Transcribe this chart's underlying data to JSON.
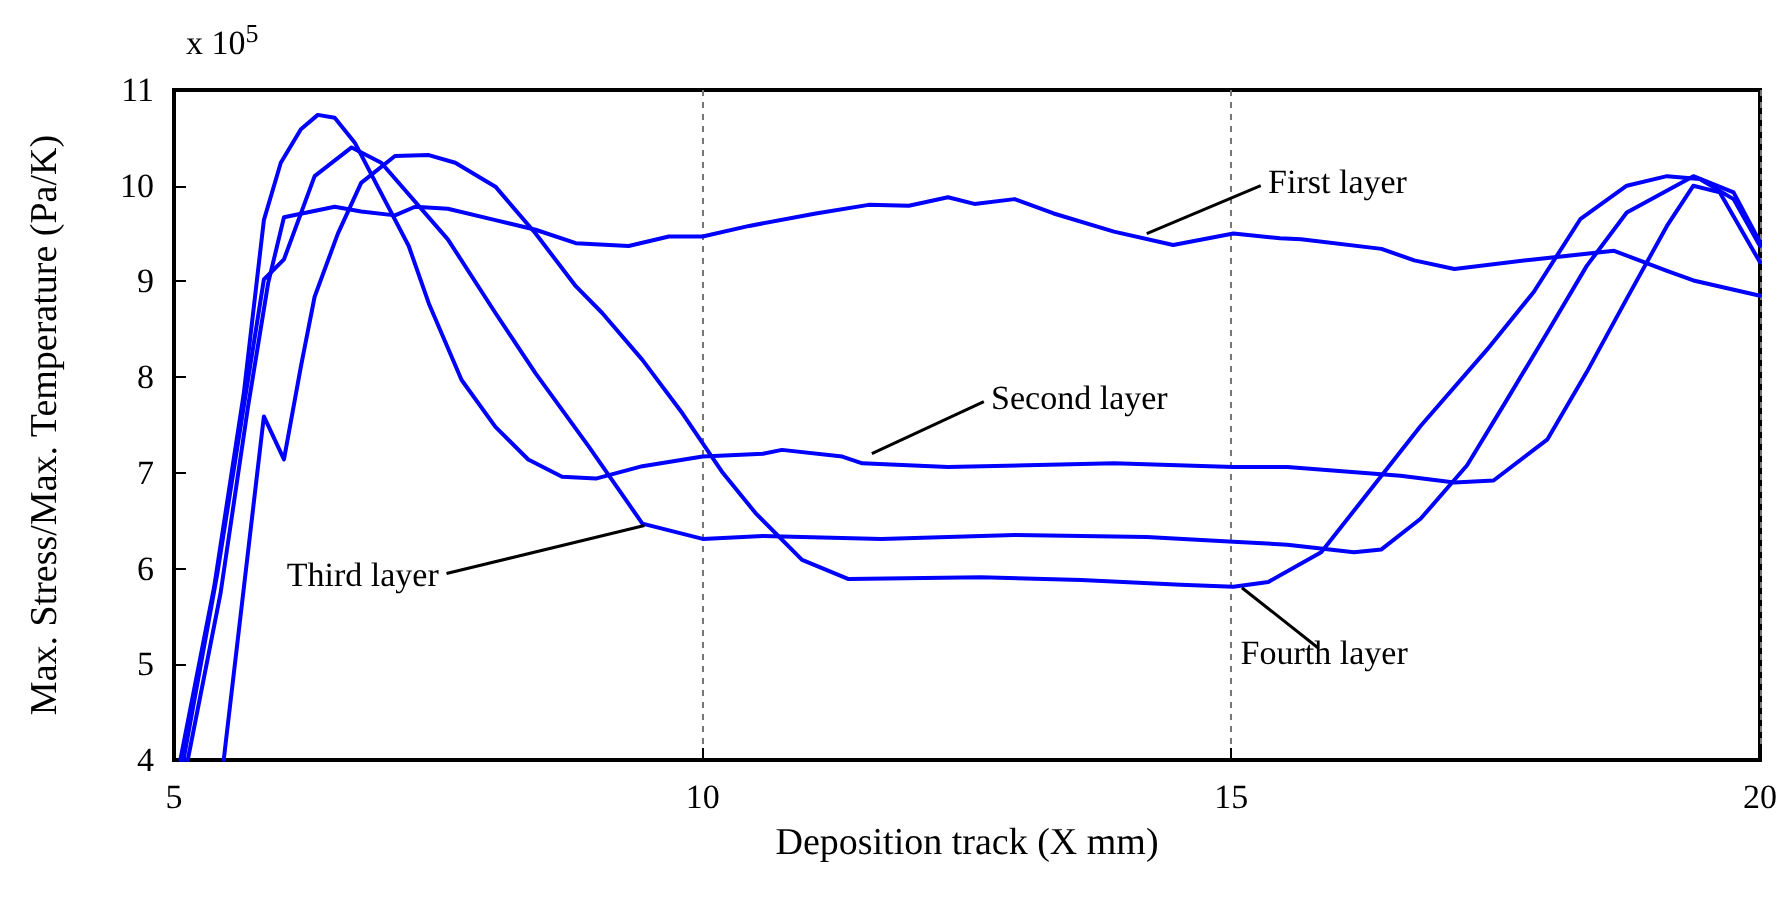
{
  "chart_data": {
    "type": "line",
    "xlabel": "Deposition track (X mm)",
    "ylabel": "Max. Stress/Max. Temperature (Pa/K)",
    "xlim": [
      5,
      20
    ],
    "xticks": [
      5,
      10,
      15,
      20
    ],
    "ylim": [
      4,
      11
    ],
    "yticks": [
      4,
      5,
      6,
      7,
      8,
      9,
      10,
      11
    ],
    "grid": "x",
    "marker": "none",
    "line_style": "solid",
    "annotations": [
      "x 10$^{5}$",
      {
        "text": "First layer",
        "x": 14.2,
        "y": 9.5
      },
      {
        "text": "Second layer",
        "x": 11.6,
        "y": 7.2
      },
      {
        "text": "Third layer",
        "x": 9.45,
        "y": 6.45
      },
      {
        "text": "Fourth layer",
        "x": 15.1,
        "y": 5.8
      }
    ],
    "series": [
      {
        "color": "#0000ff",
        "x": [
          5.13,
          5.44,
          5.7,
          5.89,
          6.04,
          6.52,
          6.77,
          7.09,
          7.28,
          7.59,
          8.04,
          8.42,
          8.8,
          9.3,
          9.68,
          10.0,
          10.44,
          11.07,
          11.57,
          11.95,
          12.32,
          12.57,
          12.95,
          13.32,
          13.89,
          14.45,
          15.02,
          15.46,
          15.66,
          16.42,
          16.73,
          17.11,
          17.86,
          18.62,
          19.12,
          19.37,
          20.0
        ],
        "values": [
          4,
          5.74,
          7.69,
          8.98,
          9.67,
          9.78,
          9.73,
          9.69,
          9.78,
          9.76,
          9.64,
          9.54,
          9.4,
          9.37,
          9.47,
          9.47,
          9.58,
          9.71,
          9.8,
          9.79,
          9.88,
          9.81,
          9.86,
          9.71,
          9.52,
          9.38,
          9.5,
          9.45,
          9.44,
          9.34,
          9.22,
          9.13,
          9.23,
          9.32,
          9.11,
          9.01,
          8.85
        ]
      },
      {
        "color": "#0000ff",
        "x": [
          5.06,
          5.38,
          5.66,
          5.85,
          6.01,
          6.2,
          6.36,
          6.52,
          6.71,
          6.96,
          7.22,
          7.41,
          7.72,
          8.04,
          8.35,
          8.67,
          8.99,
          9.43,
          10.0,
          10.57,
          10.75,
          11.32,
          11.51,
          12.32,
          13.89,
          15.02,
          15.53,
          16.6,
          17.11,
          17.48,
          17.99,
          18.36,
          18.74,
          19.12,
          19.37,
          19.62,
          20.0
        ],
        "values": [
          4,
          5.81,
          7.83,
          9.64,
          10.24,
          10.59,
          10.74,
          10.71,
          10.45,
          9.92,
          9.37,
          8.77,
          7.97,
          7.48,
          7.14,
          6.96,
          6.94,
          7.07,
          7.17,
          7.2,
          7.24,
          7.17,
          7.1,
          7.06,
          7.1,
          7.06,
          7.06,
          6.97,
          6.9,
          6.92,
          7.35,
          8.05,
          8.82,
          9.58,
          10.0,
          9.93,
          9.2
        ]
      },
      {
        "color": "#0000ff",
        "x": [
          5.09,
          5.41,
          5.85,
          6.04,
          6.33,
          6.68,
          6.96,
          7.59,
          8.04,
          8.42,
          8.92,
          9.43,
          10.0,
          10.57,
          11.69,
          12.95,
          14.2,
          15.02,
          15.53,
          16.16,
          16.42,
          16.79,
          17.23,
          17.61,
          17.99,
          18.36,
          18.74,
          19.37,
          19.75,
          20.0
        ],
        "values": [
          4,
          5.95,
          9.02,
          9.23,
          10.1,
          10.4,
          10.24,
          9.44,
          8.67,
          8.04,
          7.28,
          6.47,
          6.31,
          6.34,
          6.31,
          6.35,
          6.33,
          6.28,
          6.25,
          6.17,
          6.2,
          6.52,
          7.08,
          7.77,
          8.47,
          9.16,
          9.72,
          10.1,
          9.93,
          9.41
        ]
      },
      {
        "color": "#0000ff",
        "x": [
          5.47,
          5.85,
          6.04,
          6.2,
          6.33,
          6.55,
          6.77,
          7.09,
          7.41,
          7.66,
          8.04,
          8.42,
          8.8,
          9.05,
          9.43,
          9.81,
          10.19,
          10.5,
          10.94,
          11.38,
          12.63,
          13.58,
          14.52,
          15.02,
          15.35,
          15.85,
          16.42,
          16.79,
          17.42,
          17.86,
          18.3,
          18.74,
          19.12,
          19.43,
          19.75,
          20.0
        ],
        "values": [
          4,
          7.59,
          7.14,
          8.11,
          8.84,
          9.5,
          10.03,
          10.31,
          10.32,
          10.24,
          9.99,
          9.5,
          8.95,
          8.67,
          8.18,
          7.62,
          7.0,
          6.58,
          6.09,
          5.89,
          5.91,
          5.88,
          5.83,
          5.81,
          5.86,
          6.17,
          6.97,
          7.49,
          8.29,
          8.89,
          9.65,
          10.0,
          10.1,
          10.07,
          9.86,
          9.37
        ]
      }
    ]
  }
}
